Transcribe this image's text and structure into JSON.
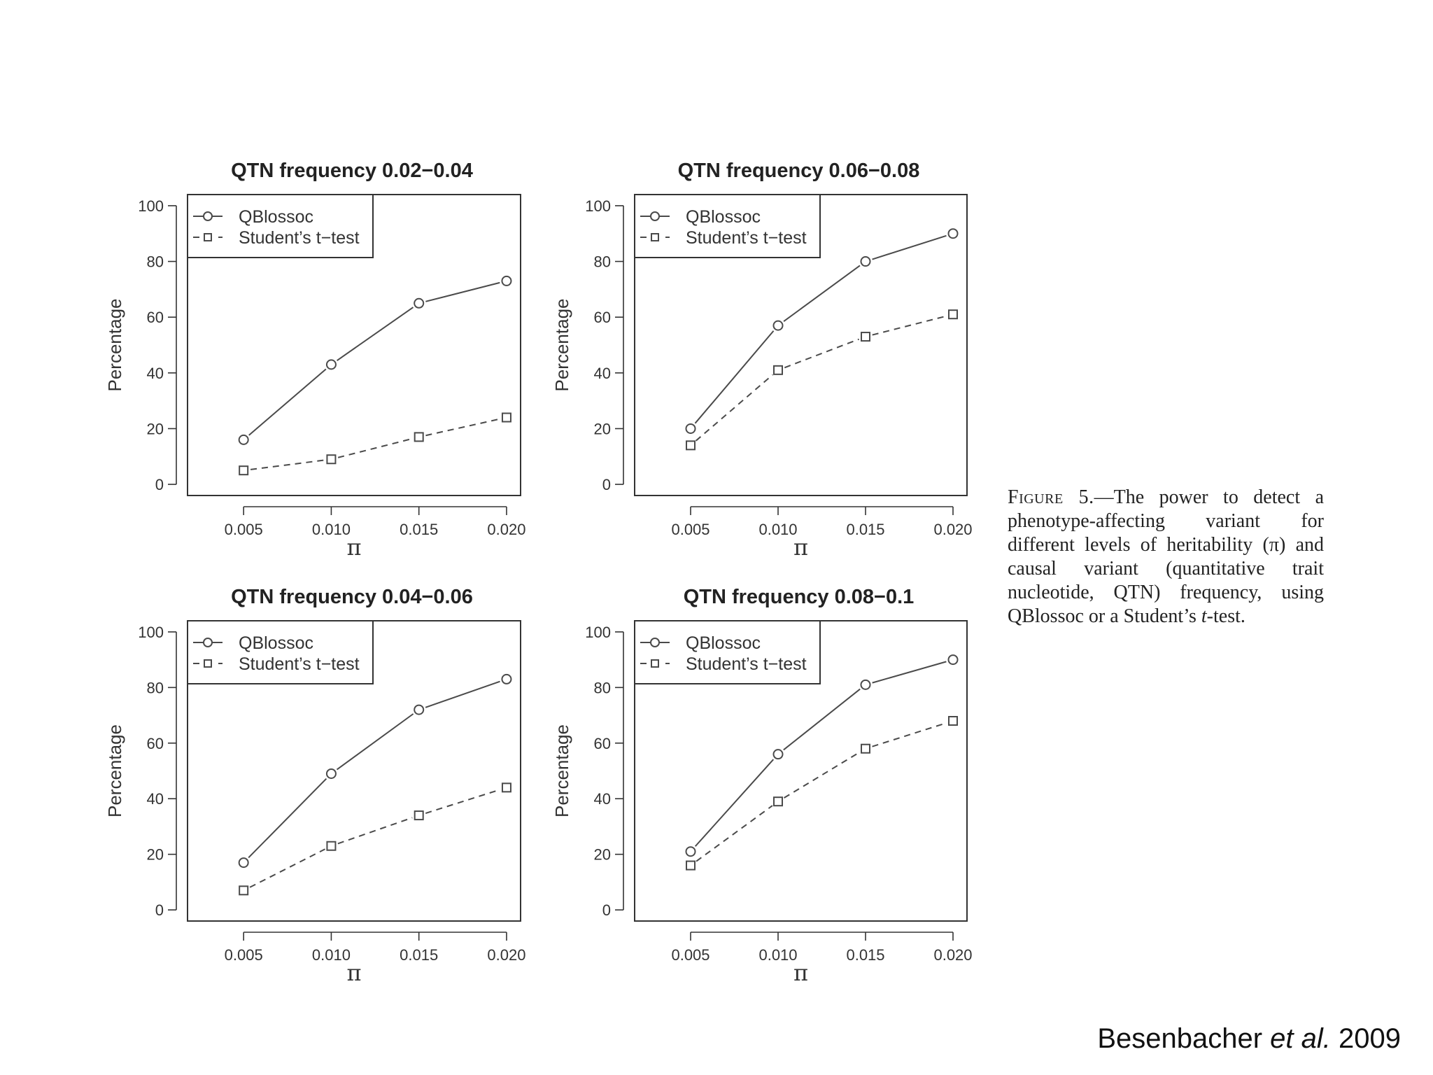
{
  "chart_data": [
    {
      "type": "line",
      "title": "QTN frequency 0.02−0.04",
      "xlabel": "π",
      "ylabel": "Percentage",
      "x": [
        0.005,
        0.01,
        0.015,
        0.02
      ],
      "x_tick_labels": [
        "0.005",
        "0.010",
        "0.015",
        "0.020"
      ],
      "y_ticks": [
        0,
        20,
        40,
        60,
        80,
        100
      ],
      "ylim": [
        -4,
        104
      ],
      "xlim": [
        0.0018,
        0.0208
      ],
      "legend_position": "top-left",
      "series": [
        {
          "name": "QBlossoc",
          "marker": "circle",
          "line": "solid",
          "values": [
            16,
            43,
            65,
            73
          ]
        },
        {
          "name": "Student’s t−test",
          "marker": "square",
          "line": "dashed",
          "values": [
            5,
            9,
            17,
            24
          ]
        }
      ]
    },
    {
      "type": "line",
      "title": "QTN frequency 0.06−0.08",
      "xlabel": "π",
      "ylabel": "Percentage",
      "x": [
        0.005,
        0.01,
        0.015,
        0.02
      ],
      "x_tick_labels": [
        "0.005",
        "0.010",
        "0.015",
        "0.020"
      ],
      "y_ticks": [
        0,
        20,
        40,
        60,
        80,
        100
      ],
      "ylim": [
        -4,
        104
      ],
      "xlim": [
        0.0018,
        0.0208
      ],
      "legend_position": "top-left",
      "series": [
        {
          "name": "QBlossoc",
          "marker": "circle",
          "line": "solid",
          "values": [
            20,
            57,
            80,
            90
          ]
        },
        {
          "name": "Student’s t−test",
          "marker": "square",
          "line": "dashed",
          "values": [
            14,
            41,
            53,
            61
          ]
        }
      ]
    },
    {
      "type": "line",
      "title": "QTN frequency 0.04−0.06",
      "xlabel": "π",
      "ylabel": "Percentage",
      "x": [
        0.005,
        0.01,
        0.015,
        0.02
      ],
      "x_tick_labels": [
        "0.005",
        "0.010",
        "0.015",
        "0.020"
      ],
      "y_ticks": [
        0,
        20,
        40,
        60,
        80,
        100
      ],
      "ylim": [
        -4,
        104
      ],
      "xlim": [
        0.0018,
        0.0208
      ],
      "legend_position": "top-left",
      "series": [
        {
          "name": "QBlossoc",
          "marker": "circle",
          "line": "solid",
          "values": [
            17,
            49,
            72,
            83
          ]
        },
        {
          "name": "Student’s t−test",
          "marker": "square",
          "line": "dashed",
          "values": [
            7,
            23,
            34,
            44
          ]
        }
      ]
    },
    {
      "type": "line",
      "title": "QTN frequency 0.08−0.1",
      "xlabel": "π",
      "ylabel": "Percentage",
      "x": [
        0.005,
        0.01,
        0.015,
        0.02
      ],
      "x_tick_labels": [
        "0.005",
        "0.010",
        "0.015",
        "0.020"
      ],
      "y_ticks": [
        0,
        20,
        40,
        60,
        80,
        100
      ],
      "ylim": [
        -4,
        104
      ],
      "xlim": [
        0.0018,
        0.0208
      ],
      "legend_position": "top-left",
      "series": [
        {
          "name": "QBlossoc",
          "marker": "circle",
          "line": "solid",
          "values": [
            21,
            56,
            81,
            90
          ]
        },
        {
          "name": "Student’s t−test",
          "marker": "square",
          "line": "dashed",
          "values": [
            16,
            39,
            58,
            68
          ]
        }
      ]
    }
  ],
  "caption": {
    "label": "Figure 5.",
    "text_1": "—The power to detect a phenotype-affecting variant for different levels of heritability (π) and causal variant (quantitative trait nucleotide, QTN) frequency, using QBlossoc or a Student’s ",
    "italic": "t",
    "text_2": "-test."
  },
  "citation": {
    "author": "Besenbacher",
    "etal": "et al.",
    "year": "2009"
  },
  "colors": {
    "line": "#4a4a4a",
    "axis": "#333333",
    "background": "#ffffff"
  }
}
